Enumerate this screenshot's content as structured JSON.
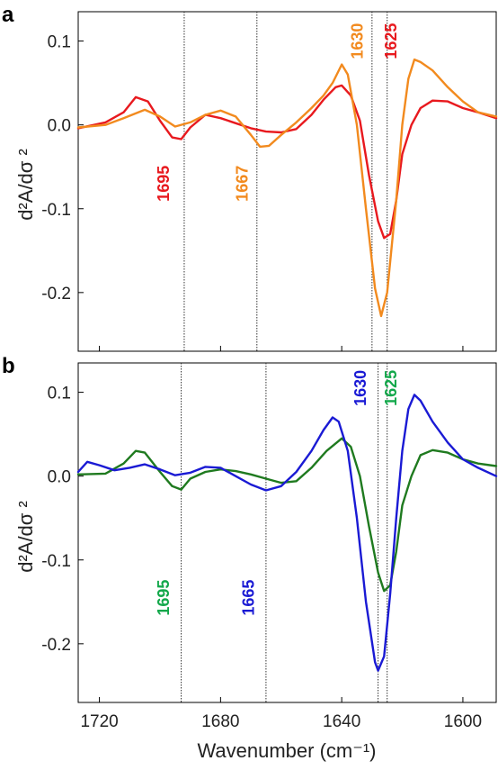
{
  "chart_data": [
    {
      "type": "line",
      "panel_label": "a",
      "xlabel": "",
      "ylabel": "d²A/dσ ²",
      "xlim": [
        1727,
        1589
      ],
      "ylim": [
        -0.27,
        0.135
      ],
      "x_reversed": true,
      "yticks": [
        0.1,
        0.0,
        -0.1,
        -0.2
      ],
      "ytick_labels": [
        "0.1",
        "0.0",
        "-0.1",
        "-0.2"
      ],
      "xticks": [
        1720,
        1680,
        1640,
        1600
      ],
      "series": [
        {
          "color": "#e8191e",
          "x": [
            1727,
            1718,
            1712,
            1708,
            1704,
            1700,
            1696,
            1693,
            1690,
            1685,
            1680,
            1675,
            1670,
            1665,
            1660,
            1655,
            1650,
            1646,
            1642,
            1640,
            1637,
            1634,
            1631,
            1628,
            1626,
            1624,
            1622,
            1620,
            1617,
            1614,
            1610,
            1605,
            1600,
            1595,
            1589
          ],
          "y": [
            -0.004,
            0.003,
            0.015,
            0.033,
            0.028,
            0.005,
            -0.015,
            -0.017,
            -0.003,
            0.012,
            0.008,
            0.002,
            -0.004,
            -0.008,
            -0.009,
            -0.005,
            0.012,
            0.03,
            0.045,
            0.047,
            0.035,
            0.005,
            -0.06,
            -0.115,
            -0.135,
            -0.13,
            -0.09,
            -0.035,
            0.0,
            0.02,
            0.029,
            0.028,
            0.02,
            0.015,
            0.008
          ]
        },
        {
          "color": "#f28a1e",
          "x": [
            1727,
            1718,
            1712,
            1705,
            1700,
            1695,
            1690,
            1685,
            1680,
            1675,
            1670,
            1667,
            1664,
            1660,
            1655,
            1650,
            1646,
            1643,
            1640,
            1638,
            1635,
            1632,
            1629,
            1627,
            1625,
            1622,
            1620,
            1618,
            1616,
            1614,
            1610,
            1605,
            1600,
            1595,
            1589
          ],
          "y": [
            -0.003,
            0.0,
            0.008,
            0.018,
            0.01,
            -0.002,
            0.003,
            0.012,
            0.017,
            0.01,
            -0.012,
            -0.026,
            -0.025,
            -0.012,
            0.003,
            0.02,
            0.035,
            0.05,
            0.072,
            0.06,
            0.0,
            -0.1,
            -0.195,
            -0.228,
            -0.2,
            -0.09,
            0.0,
            0.055,
            0.078,
            0.075,
            0.065,
            0.045,
            0.028,
            0.015,
            0.01
          ]
        }
      ],
      "vlines": [
        1692,
        1668,
        1630,
        1625
      ],
      "annotations": [
        {
          "text": "1695",
          "x": 1697,
          "y": -0.07,
          "color": "#e8191e"
        },
        {
          "text": "1667",
          "x": 1671,
          "y": -0.07,
          "color": "#f28a1e"
        },
        {
          "text": "1630",
          "x": 1633,
          "y": 0.1,
          "color": "#f28a1e"
        },
        {
          "text": "1625",
          "x": 1622,
          "y": 0.1,
          "color": "#e8191e"
        }
      ]
    },
    {
      "type": "line",
      "panel_label": "b",
      "xlabel": "Wavenumber (cm⁻¹)",
      "ylabel": "d²A/dσ ²",
      "xlim": [
        1727,
        1589
      ],
      "ylim": [
        -0.27,
        0.135
      ],
      "x_reversed": true,
      "yticks": [
        0.1,
        0.0,
        -0.1,
        -0.2
      ],
      "ytick_labels": [
        "0.1",
        "0.0",
        "-0.1",
        "-0.2"
      ],
      "xticks": [
        1720,
        1680,
        1640,
        1600
      ],
      "xtick_labels": [
        "1720",
        "1680",
        "1640",
        "1600"
      ],
      "series": [
        {
          "color": "#1f7a1f",
          "x": [
            1727,
            1718,
            1712,
            1708,
            1705,
            1700,
            1696,
            1693,
            1690,
            1685,
            1680,
            1675,
            1670,
            1665,
            1660,
            1655,
            1650,
            1645,
            1640,
            1637,
            1634,
            1631,
            1628,
            1626,
            1624,
            1622,
            1620,
            1617,
            1614,
            1610,
            1605,
            1600,
            1595,
            1589
          ],
          "y": [
            0.002,
            0.003,
            0.015,
            0.03,
            0.028,
            0.005,
            -0.012,
            -0.016,
            -0.003,
            0.005,
            0.008,
            0.006,
            0.002,
            -0.003,
            -0.008,
            -0.006,
            0.01,
            0.03,
            0.045,
            0.035,
            0.0,
            -0.06,
            -0.115,
            -0.137,
            -0.13,
            -0.09,
            -0.035,
            0.0,
            0.025,
            0.031,
            0.028,
            0.02,
            0.015,
            0.012
          ]
        },
        {
          "color": "#1a1ad4",
          "x": [
            1727,
            1724,
            1720,
            1715,
            1710,
            1705,
            1700,
            1695,
            1690,
            1685,
            1680,
            1675,
            1670,
            1665,
            1660,
            1655,
            1650,
            1646,
            1643,
            1641,
            1638,
            1635,
            1632,
            1629,
            1628,
            1626,
            1624,
            1622,
            1620,
            1618,
            1616,
            1614,
            1610,
            1605,
            1600,
            1595,
            1589
          ],
          "y": [
            0.005,
            0.017,
            0.013,
            0.007,
            0.01,
            0.014,
            0.008,
            0.001,
            0.004,
            0.011,
            0.01,
            0.0,
            -0.01,
            -0.017,
            -0.012,
            0.005,
            0.03,
            0.055,
            0.07,
            0.065,
            0.03,
            -0.05,
            -0.15,
            -0.222,
            -0.232,
            -0.215,
            -0.14,
            -0.05,
            0.03,
            0.08,
            0.097,
            0.09,
            0.065,
            0.04,
            0.02,
            0.01,
            0.0
          ]
        }
      ],
      "vlines": [
        1693,
        1665,
        1628,
        1625
      ],
      "annotations": [
        {
          "text": "1695",
          "x": 1697,
          "y": -0.145,
          "color": "#13a84b"
        },
        {
          "text": "1665",
          "x": 1669,
          "y": -0.145,
          "color": "#1a1ad4"
        },
        {
          "text": "1630",
          "x": 1632,
          "y": 0.105,
          "color": "#1a1ad4"
        },
        {
          "text": "1625",
          "x": 1622,
          "y": 0.105,
          "color": "#13a84b"
        }
      ]
    }
  ]
}
